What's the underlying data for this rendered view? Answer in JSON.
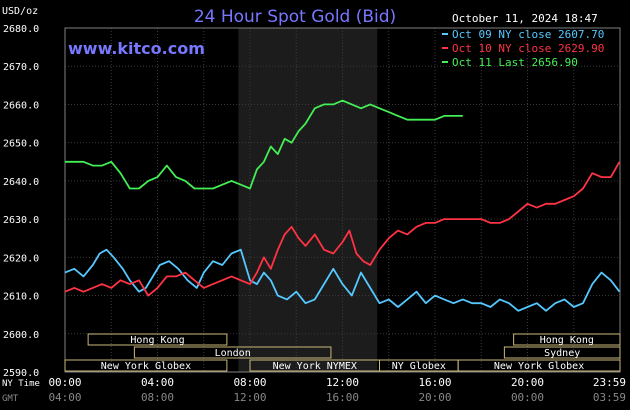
{
  "header": {
    "unit": "USD/oz",
    "title": "24 Hour Spot Gold (Bid)",
    "site": "www.kitco.com",
    "timestamp": "October 11, 2024 18:47"
  },
  "legend": [
    {
      "label": "Oct 09 NY close 2607.70",
      "color": "#55c8ff"
    },
    {
      "label": "Oct 10 NY close 2629.90",
      "color": "#ff3344"
    },
    {
      "label": "Oct 11 Last 2656.90",
      "color": "#44ee55"
    }
  ],
  "markets": [
    {
      "name": "Hong Kong",
      "row": 0,
      "start_hr": 1.0,
      "end_hr": 7.0
    },
    {
      "name": "Hong Kong",
      "row": 0,
      "start_hr": 19.4,
      "end_hr": 24.0
    },
    {
      "name": "London",
      "row": 1,
      "start_hr": 3.0,
      "end_hr": 11.5
    },
    {
      "name": "Sydney",
      "row": 1,
      "start_hr": 19.0,
      "end_hr": 24.0
    },
    {
      "name": "New York Globex",
      "row": 2,
      "start_hr": 0.0,
      "end_hr": 7.0
    },
    {
      "name": "New York NYMEX",
      "row": 2,
      "start_hr": 8.0,
      "end_hr": 13.6
    },
    {
      "name": "NY Globex",
      "row": 2,
      "start_hr": 13.6,
      "end_hr": 17.0
    },
    {
      "name": "New York Globex",
      "row": 2,
      "start_hr": 17.0,
      "end_hr": 24.0
    }
  ],
  "time_labels": {
    "ny_label": "NY Time",
    "gmt_label": "GMT",
    "ny": [
      "00:00",
      "04:00",
      "08:00",
      "12:00",
      "16:00",
      "20:00",
      "23:59"
    ],
    "gmt": [
      "04:00",
      "08:00",
      "12:00",
      "16:00",
      "20:00",
      "00:00",
      "03:59"
    ]
  },
  "chart_data": {
    "type": "line",
    "title": "24 Hour Spot Gold (Bid)",
    "ylabel": "USD/oz",
    "xlabel": "NY Time",
    "ylim": [
      2590,
      2680
    ],
    "y_ticks": [
      2590,
      2600,
      2610,
      2620,
      2630,
      2640,
      2650,
      2660,
      2670,
      2680
    ],
    "x_range_hours": [
      0,
      24
    ],
    "x_unit": "hours (NY time)",
    "shaded_session_hours": [
      7.5,
      13.5
    ],
    "grid": true,
    "legend_position": "top-right",
    "series": [
      {
        "name": "Oct 09 NY close 2607.70",
        "color": "#55c8ff",
        "x": [
          0.0,
          0.4,
          0.8,
          1.2,
          1.5,
          1.8,
          2.1,
          2.5,
          2.8,
          3.2,
          3.5,
          3.8,
          4.1,
          4.5,
          4.9,
          5.3,
          5.7,
          6.0,
          6.4,
          6.8,
          7.2,
          7.6,
          8.0,
          8.3,
          8.6,
          8.9,
          9.2,
          9.6,
          10.0,
          10.4,
          10.8,
          11.2,
          11.6,
          12.0,
          12.4,
          12.8,
          13.2,
          13.6,
          14.0,
          14.4,
          14.8,
          15.2,
          15.6,
          16.0,
          16.4,
          16.8,
          17.2,
          17.6,
          18.0,
          18.4,
          18.8,
          19.2,
          19.6,
          20.0,
          20.4,
          20.8,
          21.2,
          21.6,
          22.0,
          22.4,
          22.8,
          23.2,
          23.6,
          23.98
        ],
        "values": [
          2616,
          2617,
          2615,
          2618,
          2621,
          2622,
          2620,
          2617,
          2614,
          2611,
          2612,
          2615,
          2618,
          2619,
          2617,
          2614,
          2612,
          2616,
          2619,
          2618,
          2621,
          2622,
          2614,
          2613,
          2616,
          2614,
          2610,
          2609,
          2611,
          2608,
          2609,
          2613,
          2617,
          2613,
          2610,
          2616,
          2612,
          2608,
          2609,
          2607,
          2609,
          2611,
          2608,
          2610,
          2609,
          2608,
          2609,
          2608,
          2608,
          2607,
          2609,
          2608,
          2606,
          2607,
          2608,
          2606,
          2608,
          2609,
          2607,
          2608,
          2613,
          2616,
          2614,
          2611
        ]
      },
      {
        "name": "Oct 10 NY close 2629.90",
        "color": "#ff3344",
        "x": [
          0.0,
          0.4,
          0.8,
          1.2,
          1.6,
          2.0,
          2.4,
          2.8,
          3.2,
          3.6,
          4.0,
          4.4,
          4.8,
          5.2,
          5.6,
          6.0,
          6.4,
          6.8,
          7.2,
          7.6,
          8.0,
          8.3,
          8.6,
          8.9,
          9.2,
          9.5,
          9.8,
          10.1,
          10.4,
          10.8,
          11.2,
          11.6,
          12.0,
          12.3,
          12.6,
          12.9,
          13.2,
          13.6,
          14.0,
          14.4,
          14.8,
          15.2,
          15.6,
          16.0,
          16.4,
          16.8,
          17.2,
          17.6,
          18.0,
          18.4,
          18.8,
          19.2,
          19.6,
          20.0,
          20.4,
          20.8,
          21.2,
          21.6,
          22.0,
          22.4,
          22.8,
          23.2,
          23.6,
          23.98
        ],
        "values": [
          2611,
          2612,
          2611,
          2612,
          2613,
          2612,
          2614,
          2613,
          2614,
          2610,
          2612,
          2615,
          2615,
          2616,
          2614,
          2612,
          2613,
          2614,
          2615,
          2614,
          2613,
          2616,
          2620,
          2617,
          2622,
          2626,
          2628,
          2625,
          2623,
          2626,
          2622,
          2621,
          2624,
          2627,
          2621,
          2619,
          2618,
          2622,
          2625,
          2627,
          2626,
          2628,
          2629,
          2629,
          2630,
          2630,
          2630,
          2630,
          2630,
          2629,
          2629,
          2630,
          2632,
          2634,
          2633,
          2634,
          2634,
          2635,
          2636,
          2638,
          2642,
          2641,
          2641,
          2645
        ]
      },
      {
        "name": "Oct 11 Last 2656.90",
        "color": "#44ee55",
        "x": [
          0.0,
          0.4,
          0.8,
          1.2,
          1.6,
          2.0,
          2.4,
          2.8,
          3.2,
          3.6,
          4.0,
          4.4,
          4.8,
          5.2,
          5.6,
          6.0,
          6.4,
          6.8,
          7.2,
          7.6,
          8.0,
          8.3,
          8.6,
          8.9,
          9.2,
          9.5,
          9.8,
          10.1,
          10.4,
          10.8,
          11.2,
          11.6,
          12.0,
          12.4,
          12.8,
          13.2,
          13.6,
          14.0,
          14.4,
          14.8,
          15.2,
          15.6,
          16.0,
          16.4,
          16.8,
          17.2
        ],
        "values": [
          2645,
          2645,
          2645,
          2644,
          2644,
          2645,
          2642,
          2638,
          2638,
          2640,
          2641,
          2644,
          2641,
          2640,
          2638,
          2638,
          2638,
          2639,
          2640,
          2639,
          2638,
          2643,
          2645,
          2649,
          2647,
          2651,
          2650,
          2653,
          2655,
          2659,
          2660,
          2660,
          2661,
          2660,
          2659,
          2660,
          2659,
          2658,
          2657,
          2656,
          2656,
          2656,
          2656,
          2657,
          2657,
          2657
        ]
      }
    ]
  }
}
